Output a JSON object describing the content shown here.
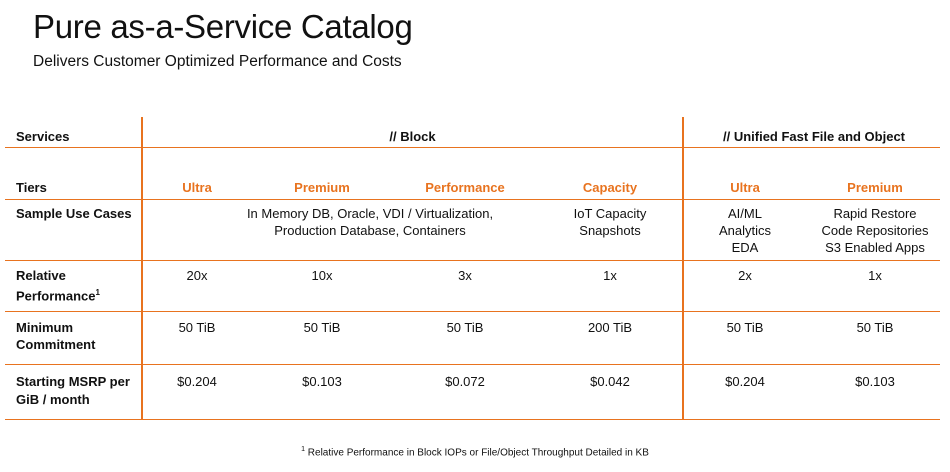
{
  "header": {
    "title": "Pure as-a-Service Catalog",
    "subtitle": "Delivers Customer Optimized Performance and Costs"
  },
  "table": {
    "services_label": "Services",
    "group_block": "// Block",
    "group_unified": "// Unified Fast File and Object",
    "tiers_label": "Tiers",
    "tiers": [
      "Ultra",
      "Premium",
      "Performance",
      "Capacity",
      "Ultra",
      "Premium"
    ],
    "use_cases_label": "Sample Use Cases",
    "use_cases": {
      "block_main_line1": "In Memory DB, Oracle, VDI / Virtualization,",
      "block_main_line2": "Production Database, Containers",
      "capacity_line1": "IoT Capacity",
      "capacity_line2": "Snapshots",
      "ultra_line1": "AI/ML",
      "ultra_line2": "Analytics",
      "ultra_line3": "EDA",
      "premium_line1": "Rapid Restore",
      "premium_line2": "Code Repositories",
      "premium_line3": "S3 Enabled Apps"
    },
    "perf_label_line1": "Relative",
    "perf_label_line2": "Performance",
    "perf_label_sup": "1",
    "performance": [
      "20x",
      "10x",
      "3x",
      "1x",
      "2x",
      "1x"
    ],
    "commit_label_line1": "Minimum",
    "commit_label_line2": "Commitment",
    "commitment": [
      "50 TiB",
      "50 TiB",
      "50 TiB",
      "200 TiB",
      "50 TiB",
      "50 TiB"
    ],
    "msrp_label_line1": "Starting MSRP per",
    "msrp_label_line2": "GiB / month",
    "msrp": [
      "$0.204",
      "$0.103",
      "$0.072",
      "$0.042",
      "$0.204",
      "$0.103"
    ]
  },
  "footnote": {
    "sup": "1",
    "text": " Relative Performance in Block IOPs or File/Object Throughput Detailed in KB"
  },
  "colors": {
    "accent": "#e8731f"
  }
}
